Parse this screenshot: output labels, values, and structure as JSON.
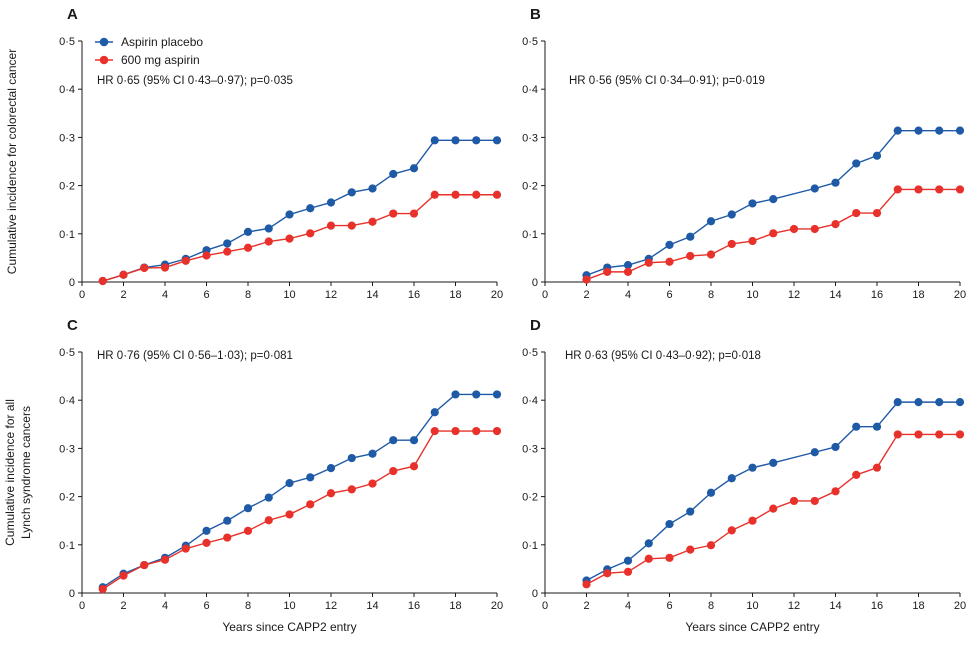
{
  "colors": {
    "placebo": "#1f5aa6",
    "aspirin": "#e8312a",
    "axis": "#1a1a1a"
  },
  "legend": {
    "placement": "top-left of panel A",
    "items": [
      {
        "label": "Aspirin placebo",
        "color": "#1f5aa6"
      },
      {
        "label": "600 mg aspirin",
        "color": "#e8312a"
      }
    ]
  },
  "row_ylabels": [
    [
      "Cumulative incidence for colorectal cancer"
    ],
    [
      "Cumulative incidence for all",
      "Lynch syndrome cancers"
    ]
  ],
  "chart_data": [
    {
      "type": "line",
      "panel": "A",
      "annotation": "HR 0·65 (95% CI 0·43–0·97); p=0·035",
      "xlabel": "",
      "ylabel": "Cumulative incidence for colorectal cancer",
      "xlim": [
        0,
        20
      ],
      "ylim": [
        0,
        0.5
      ],
      "xticks": [
        "0",
        "2",
        "4",
        "6",
        "8",
        "10",
        "12",
        "14",
        "16",
        "18",
        "20"
      ],
      "yticks": [
        "0",
        "0·1",
        "0·2",
        "0·3",
        "0·4",
        "0·5"
      ],
      "series": [
        {
          "name": "Aspirin placebo",
          "points": [
            [
              1,
              0.002
            ],
            [
              2,
              0.015
            ],
            [
              3,
              0.03
            ],
            [
              4,
              0.036
            ],
            [
              5,
              0.048
            ],
            [
              6,
              0.066
            ],
            [
              7,
              0.08
            ],
            [
              8,
              0.104
            ],
            [
              9,
              0.111
            ],
            [
              10,
              0.14
            ],
            [
              11,
              0.153
            ],
            [
              12,
              0.165
            ],
            [
              13,
              0.186
            ],
            [
              14,
              0.194
            ],
            [
              15,
              0.224
            ],
            [
              16,
              0.236
            ],
            [
              17,
              0.294
            ],
            [
              18,
              0.294
            ],
            [
              19,
              0.294
            ],
            [
              20,
              0.294
            ]
          ]
        },
        {
          "name": "600 mg aspirin",
          "points": [
            [
              1,
              0.002
            ],
            [
              2,
              0.015
            ],
            [
              3,
              0.029
            ],
            [
              4,
              0.03
            ],
            [
              5,
              0.044
            ],
            [
              6,
              0.055
            ],
            [
              7,
              0.063
            ],
            [
              8,
              0.071
            ],
            [
              9,
              0.084
            ],
            [
              10,
              0.09
            ],
            [
              11,
              0.101
            ],
            [
              12,
              0.117
            ],
            [
              13,
              0.117
            ],
            [
              14,
              0.125
            ],
            [
              15,
              0.142
            ],
            [
              16,
              0.142
            ],
            [
              17,
              0.181
            ],
            [
              18,
              0.181
            ],
            [
              19,
              0.181
            ],
            [
              20,
              0.181
            ]
          ]
        }
      ]
    },
    {
      "type": "line",
      "panel": "B",
      "annotation": "HR 0·56 (95% CI 0·34–0·91); p=0·019",
      "xlabel": "",
      "ylabel": "",
      "xlim": [
        0,
        20
      ],
      "ylim": [
        0,
        0.5
      ],
      "xticks": [
        "0",
        "2",
        "4",
        "6",
        "8",
        "10",
        "12",
        "14",
        "16",
        "18",
        "20"
      ],
      "yticks": [
        "0",
        "0·1",
        "0·2",
        "0·3",
        "0·4",
        "0·5"
      ],
      "series": [
        {
          "name": "Aspirin placebo",
          "points": [
            [
              2,
              0.014
            ],
            [
              3,
              0.03
            ],
            [
              4,
              0.035
            ],
            [
              5,
              0.048
            ],
            [
              6,
              0.077
            ],
            [
              7,
              0.094
            ],
            [
              8,
              0.126
            ],
            [
              9,
              0.14
            ],
            [
              10,
              0.163
            ],
            [
              11,
              0.172
            ],
            [
              13,
              0.194
            ],
            [
              14,
              0.206
            ],
            [
              15,
              0.246
            ],
            [
              16,
              0.262
            ],
            [
              17,
              0.314
            ],
            [
              18,
              0.314
            ],
            [
              19,
              0.314
            ],
            [
              20,
              0.314
            ]
          ]
        },
        {
          "name": "600 mg aspirin",
          "points": [
            [
              2,
              0.005
            ],
            [
              3,
              0.021
            ],
            [
              4,
              0.021
            ],
            [
              5,
              0.04
            ],
            [
              6,
              0.042
            ],
            [
              7,
              0.054
            ],
            [
              8,
              0.057
            ],
            [
              9,
              0.079
            ],
            [
              10,
              0.085
            ],
            [
              11,
              0.101
            ],
            [
              12,
              0.11
            ],
            [
              13,
              0.11
            ],
            [
              14,
              0.12
            ],
            [
              15,
              0.143
            ],
            [
              16,
              0.143
            ],
            [
              17,
              0.192
            ],
            [
              18,
              0.192
            ],
            [
              19,
              0.192
            ],
            [
              20,
              0.192
            ]
          ]
        }
      ]
    },
    {
      "type": "line",
      "panel": "C",
      "annotation": "HR 0·76 (95% CI 0·56–1·03); p=0·081",
      "xlabel": "Years since CAPP2 entry",
      "ylabel": "Cumulative incidence for all Lynch syndrome cancers",
      "xlim": [
        0,
        20
      ],
      "ylim": [
        0,
        0.5
      ],
      "xticks": [
        "0",
        "2",
        "4",
        "6",
        "8",
        "10",
        "12",
        "14",
        "16",
        "18",
        "20"
      ],
      "yticks": [
        "0",
        "0·1",
        "0·2",
        "0·3",
        "0·4",
        "0·5"
      ],
      "series": [
        {
          "name": "Aspirin placebo",
          "points": [
            [
              1,
              0.012
            ],
            [
              2,
              0.04
            ],
            [
              3,
              0.058
            ],
            [
              4,
              0.073
            ],
            [
              5,
              0.098
            ],
            [
              6,
              0.129
            ],
            [
              7,
              0.15
            ],
            [
              8,
              0.176
            ],
            [
              9,
              0.198
            ],
            [
              10,
              0.228
            ],
            [
              11,
              0.24
            ],
            [
              12,
              0.259
            ],
            [
              13,
              0.28
            ],
            [
              14,
              0.289
            ],
            [
              15,
              0.317
            ],
            [
              16,
              0.317
            ],
            [
              17,
              0.375
            ],
            [
              18,
              0.412
            ],
            [
              19,
              0.412
            ],
            [
              20,
              0.412
            ]
          ]
        },
        {
          "name": "600 mg aspirin",
          "points": [
            [
              1,
              0.008
            ],
            [
              2,
              0.036
            ],
            [
              3,
              0.058
            ],
            [
              4,
              0.069
            ],
            [
              5,
              0.092
            ],
            [
              6,
              0.104
            ],
            [
              7,
              0.115
            ],
            [
              8,
              0.129
            ],
            [
              9,
              0.151
            ],
            [
              10,
              0.163
            ],
            [
              11,
              0.184
            ],
            [
              12,
              0.207
            ],
            [
              13,
              0.215
            ],
            [
              14,
              0.227
            ],
            [
              15,
              0.253
            ],
            [
              16,
              0.263
            ],
            [
              17,
              0.336
            ],
            [
              18,
              0.336
            ],
            [
              19,
              0.336
            ],
            [
              20,
              0.336
            ]
          ]
        }
      ]
    },
    {
      "type": "line",
      "panel": "D",
      "annotation": "HR 0·63 (95% CI 0·43–0·92); p=0·018",
      "xlabel": "Years since CAPP2 entry",
      "ylabel": "",
      "xlim": [
        0,
        20
      ],
      "ylim": [
        0,
        0.5
      ],
      "xticks": [
        "0",
        "2",
        "4",
        "6",
        "8",
        "10",
        "12",
        "14",
        "16",
        "18",
        "20"
      ],
      "yticks": [
        "0",
        "0·1",
        "0·2",
        "0·3",
        "0·4",
        "0·5"
      ],
      "series": [
        {
          "name": "Aspirin placebo",
          "points": [
            [
              2,
              0.026
            ],
            [
              3,
              0.049
            ],
            [
              4,
              0.067
            ],
            [
              5,
              0.103
            ],
            [
              6,
              0.143
            ],
            [
              7,
              0.169
            ],
            [
              8,
              0.208
            ],
            [
              9,
              0.238
            ],
            [
              10,
              0.26
            ],
            [
              11,
              0.27
            ],
            [
              13,
              0.292
            ],
            [
              14,
              0.303
            ],
            [
              15,
              0.345
            ],
            [
              16,
              0.345
            ],
            [
              17,
              0.396
            ],
            [
              18,
              0.396
            ],
            [
              19,
              0.396
            ],
            [
              20,
              0.396
            ]
          ]
        },
        {
          "name": "600 mg aspirin",
          "points": [
            [
              2,
              0.018
            ],
            [
              3,
              0.041
            ],
            [
              4,
              0.044
            ],
            [
              5,
              0.071
            ],
            [
              6,
              0.073
            ],
            [
              7,
              0.09
            ],
            [
              8,
              0.099
            ],
            [
              9,
              0.13
            ],
            [
              10,
              0.15
            ],
            [
              11,
              0.175
            ],
            [
              12,
              0.191
            ],
            [
              13,
              0.191
            ],
            [
              14,
              0.211
            ],
            [
              15,
              0.245
            ],
            [
              16,
              0.26
            ],
            [
              17,
              0.329
            ],
            [
              18,
              0.329
            ],
            [
              19,
              0.329
            ],
            [
              20,
              0.329
            ]
          ]
        }
      ]
    }
  ]
}
